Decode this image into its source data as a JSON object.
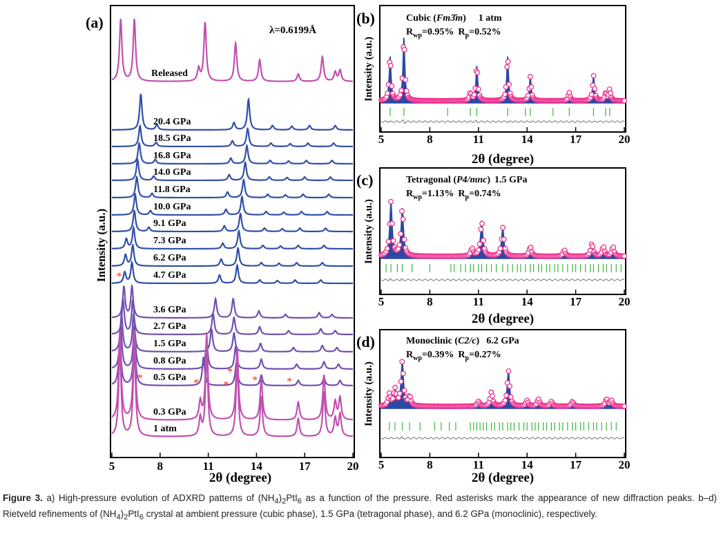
{
  "colors": {
    "magenta_trace": "#c050b0",
    "purple_trace": "#6f4fb0",
    "blue_trace": "#2f4ea8",
    "obs_marker": "#f0308f",
    "calc_fill": "#2b4aa3",
    "bragg_ticks": "#3cb43c",
    "difference": "#808080",
    "asterisk": "#ff2a00"
  },
  "chart_data": [
    {
      "panel": "(a)",
      "type": "line",
      "wavelength_label": "λ=0.6199Å",
      "xlabel": "2θ (degree)",
      "ylabel": "Intensity (a.u.)",
      "xlim": [
        5,
        20
      ],
      "xticks": [
        5,
        8,
        11,
        14,
        17,
        20
      ],
      "series": [
        {
          "name": "Released",
          "color": "magenta",
          "peaks": [
            [
              5.55,
              1.0
            ],
            [
              6.4,
              1.0
            ],
            [
              10.4,
              0.2
            ],
            [
              10.8,
              0.95
            ],
            [
              12.7,
              0.62
            ],
            [
              14.2,
              0.35
            ],
            [
              16.6,
              0.12
            ],
            [
              18.1,
              0.4
            ],
            [
              18.9,
              0.15
            ],
            [
              19.2,
              0.18
            ]
          ]
        },
        {
          "name": "20.4 GPa",
          "color": "blue",
          "peaks": [
            [
              6.8,
              1.0
            ],
            [
              7.8,
              0.15
            ],
            [
              12.6,
              0.2
            ],
            [
              13.5,
              0.85
            ],
            [
              15.0,
              0.12
            ],
            [
              16.2,
              0.1
            ],
            [
              17.3,
              0.12
            ],
            [
              18.9,
              0.12
            ]
          ]
        },
        {
          "name": "18.5 GPa",
          "color": "blue",
          "peaks": [
            [
              6.75,
              0.75
            ],
            [
              7.75,
              0.15
            ],
            [
              12.5,
              0.2
            ],
            [
              13.45,
              0.65
            ],
            [
              14.9,
              0.12
            ],
            [
              16.1,
              0.1
            ],
            [
              17.2,
              0.12
            ],
            [
              18.8,
              0.12
            ]
          ]
        },
        {
          "name": "16.8 GPa",
          "color": "blue",
          "peaks": [
            [
              6.7,
              0.75
            ],
            [
              7.7,
              0.15
            ],
            [
              12.4,
              0.2
            ],
            [
              13.4,
              0.65
            ],
            [
              14.85,
              0.12
            ],
            [
              16.0,
              0.1
            ],
            [
              17.1,
              0.12
            ],
            [
              18.7,
              0.12
            ]
          ]
        },
        {
          "name": "14.0 GPa",
          "color": "blue",
          "peaks": [
            [
              6.6,
              0.75
            ],
            [
              7.6,
              0.15
            ],
            [
              12.3,
              0.2
            ],
            [
              13.3,
              0.65
            ],
            [
              14.8,
              0.12
            ],
            [
              15.9,
              0.1
            ],
            [
              17.0,
              0.12
            ],
            [
              18.6,
              0.12
            ]
          ]
        },
        {
          "name": "11.8 GPa",
          "color": "blue",
          "peaks": [
            [
              6.55,
              0.75
            ],
            [
              7.5,
              0.15
            ],
            [
              12.2,
              0.2
            ],
            [
              13.2,
              0.65
            ],
            [
              14.7,
              0.12
            ],
            [
              15.8,
              0.1
            ],
            [
              16.9,
              0.12
            ],
            [
              18.5,
              0.12
            ]
          ]
        },
        {
          "name": "10.0 GPa",
          "color": "blue",
          "peaks": [
            [
              6.45,
              0.75
            ],
            [
              7.4,
              0.15
            ],
            [
              12.1,
              0.2
            ],
            [
              13.1,
              0.65
            ],
            [
              14.6,
              0.12
            ],
            [
              15.7,
              0.1
            ],
            [
              16.8,
              0.12
            ],
            [
              18.4,
              0.12
            ]
          ]
        },
        {
          "name": "9.1 GPa",
          "color": "blue",
          "peaks": [
            [
              6.4,
              0.75
            ],
            [
              7.3,
              0.15
            ],
            [
              12.0,
              0.2
            ],
            [
              13.0,
              0.65
            ],
            [
              14.5,
              0.12
            ],
            [
              15.6,
              0.1
            ],
            [
              16.7,
              0.12
            ],
            [
              18.3,
              0.12
            ]
          ]
        },
        {
          "name": "7.3 GPa",
          "color": "blue",
          "peaks": [
            [
              5.9,
              0.35
            ],
            [
              6.35,
              0.75
            ],
            [
              11.9,
              0.2
            ],
            [
              12.9,
              0.65
            ],
            [
              14.4,
              0.12
            ],
            [
              15.5,
              0.1
            ],
            [
              16.6,
              0.12
            ],
            [
              18.2,
              0.12
            ]
          ]
        },
        {
          "name": "6.2 GPa",
          "color": "blue",
          "peaks": [
            [
              5.85,
              0.4
            ],
            [
              6.3,
              0.75
            ],
            [
              11.8,
              0.25
            ],
            [
              12.85,
              0.65
            ],
            [
              14.3,
              0.12
            ],
            [
              15.4,
              0.1
            ],
            [
              16.5,
              0.12
            ],
            [
              18.1,
              0.12
            ]
          ]
        },
        {
          "name": "4.7 GPa",
          "color": "blue",
          "peaks": [
            [
              5.8,
              0.4
            ],
            [
              6.25,
              0.75
            ],
            [
              11.7,
              0.3
            ],
            [
              12.8,
              0.65
            ],
            [
              14.2,
              0.12
            ],
            [
              15.3,
              0.1
            ],
            [
              16.4,
              0.12
            ],
            [
              18.0,
              0.12
            ]
          ]
        },
        {
          "name": "3.6 GPa",
          "color": "purple",
          "peaks": [
            [
              5.75,
              0.9
            ],
            [
              6.25,
              0.9
            ],
            [
              11.45,
              0.55
            ],
            [
              12.55,
              0.55
            ],
            [
              14.15,
              0.2
            ],
            [
              15.8,
              0.1
            ],
            [
              17.9,
              0.15
            ],
            [
              18.7,
              0.1
            ]
          ]
        },
        {
          "name": "2.7 GPa",
          "color": "purple",
          "peaks": [
            [
              5.7,
              0.9
            ],
            [
              6.3,
              0.9
            ],
            [
              11.3,
              0.55
            ],
            [
              12.6,
              0.45
            ],
            [
              14.2,
              0.2
            ],
            [
              16.0,
              0.1
            ],
            [
              18.0,
              0.15
            ],
            [
              18.9,
              0.1
            ]
          ]
        },
        {
          "name": "1.5 GPa",
          "color": "purple",
          "peaks": [
            [
              5.6,
              0.9
            ],
            [
              6.35,
              0.9
            ],
            [
              11.2,
              0.55
            ],
            [
              12.6,
              0.45
            ],
            [
              14.25,
              0.2
            ],
            [
              16.3,
              0.1
            ],
            [
              18.1,
              0.15
            ],
            [
              19.0,
              0.1
            ]
          ]
        },
        {
          "name": "0.8 GPa",
          "color": "purple",
          "peaks": [
            [
              5.55,
              0.9
            ],
            [
              6.4,
              0.9
            ],
            [
              10.9,
              0.55
            ],
            [
              12.7,
              0.45
            ],
            [
              14.3,
              0.2
            ],
            [
              16.5,
              0.1
            ],
            [
              18.2,
              0.15
            ],
            [
              19.1,
              0.1
            ]
          ]
        },
        {
          "name": "0.5 GPa",
          "color": "purple",
          "peaks": [
            [
              5.5,
              0.9
            ],
            [
              6.4,
              0.9
            ],
            [
              10.7,
              0.55
            ],
            [
              12.75,
              0.45
            ],
            [
              14.3,
              0.2
            ],
            [
              16.6,
              0.1
            ],
            [
              18.2,
              0.15
            ],
            [
              19.2,
              0.1
            ]
          ]
        },
        {
          "name": "0.3 GPa",
          "color": "magenta",
          "peaks": [
            [
              5.5,
              1.0
            ],
            [
              6.4,
              1.0
            ],
            [
              10.5,
              0.2
            ],
            [
              10.9,
              0.95
            ],
            [
              12.8,
              0.8
            ],
            [
              14.3,
              0.45
            ],
            [
              16.6,
              0.2
            ],
            [
              18.2,
              0.5
            ],
            [
              18.9,
              0.2
            ],
            [
              19.2,
              0.25
            ]
          ]
        },
        {
          "name": "1 atm",
          "color": "magenta",
          "peaks": [
            [
              5.5,
              1.0
            ],
            [
              6.4,
              1.0
            ],
            [
              10.5,
              0.2
            ],
            [
              10.9,
              0.95
            ],
            [
              12.8,
              0.8
            ],
            [
              14.3,
              0.45
            ],
            [
              16.6,
              0.2
            ],
            [
              18.2,
              0.5
            ],
            [
              18.9,
              0.2
            ],
            [
              19.2,
              0.25
            ]
          ]
        }
      ],
      "new_peak_asterisks_2theta": [
        5.45,
        6.75,
        10.25,
        12.1,
        12.35,
        13.9,
        16.05
      ]
    },
    {
      "panel": "(b)",
      "type": "line",
      "phase": "Cubic",
      "space_group": "Fm3̄m",
      "pressure": "1 atm",
      "Rwp": "0.95%",
      "Rp": "0.52%",
      "xlabel": "2θ (degree)",
      "ylabel": "Intensity (a.u.)",
      "xlim": [
        5,
        20
      ],
      "xticks": [
        5,
        8,
        11,
        14,
        17,
        20
      ],
      "peaks": [
        [
          5.55,
          0.7
        ],
        [
          6.4,
          1.0
        ],
        [
          10.5,
          0.12
        ],
        [
          10.9,
          0.55
        ],
        [
          12.8,
          0.7
        ],
        [
          14.2,
          0.38
        ],
        [
          16.6,
          0.13
        ],
        [
          18.1,
          0.4
        ],
        [
          18.85,
          0.12
        ],
        [
          19.1,
          0.18
        ]
      ],
      "bragg_positions": [
        5.55,
        6.4,
        9.1,
        10.5,
        10.9,
        12.8,
        13.9,
        14.2,
        15.6,
        16.6,
        18.1,
        18.85,
        19.1
      ]
    },
    {
      "panel": "(c)",
      "type": "line",
      "phase": "Tetragonal",
      "space_group": "P4/mnc",
      "pressure": "1.5 GPa",
      "Rwp": "1.13%",
      "Rp": "0.74%",
      "xlabel": "2θ (degree)",
      "ylabel": "Intensity (a.u.)",
      "xlim": [
        5,
        20
      ],
      "xticks": [
        5,
        8,
        11,
        14,
        17,
        20
      ],
      "peaks": [
        [
          5.6,
          0.85
        ],
        [
          6.3,
          0.75
        ],
        [
          10.6,
          0.12
        ],
        [
          11.2,
          0.55
        ],
        [
          12.5,
          0.45
        ],
        [
          14.2,
          0.15
        ],
        [
          16.3,
          0.1
        ],
        [
          18.0,
          0.2
        ],
        [
          18.7,
          0.15
        ],
        [
          19.3,
          0.15
        ]
      ],
      "bragg_positions": [
        5.3,
        5.6,
        6.0,
        6.3,
        6.9,
        8.0,
        9.3,
        9.5,
        9.9,
        10.2,
        10.5,
        10.7,
        11.0,
        11.2,
        11.5,
        11.8,
        12.1,
        12.5,
        12.8,
        13.1,
        13.4,
        13.6,
        13.9,
        14.2,
        14.4,
        14.7,
        14.9,
        15.2,
        15.4,
        15.7,
        15.9,
        16.2,
        16.5,
        16.8,
        17.0,
        17.3,
        17.6,
        17.9,
        18.1,
        18.4,
        18.7,
        18.9,
        19.2,
        19.5,
        19.8
      ]
    },
    {
      "panel": "(d)",
      "type": "line",
      "phase": "Monoclinic",
      "space_group": "C2/c",
      "pressure": "6.2 GPa",
      "Rwp": "0.39%",
      "Rp": "0.27%",
      "xlabel": "2θ (degree)",
      "ylabel": "Intensity (a.u.)",
      "xlim": [
        5,
        20
      ],
      "xticks": [
        5,
        8,
        11,
        14,
        17,
        20
      ],
      "peaks": [
        [
          5.5,
          0.25
        ],
        [
          5.85,
          0.35
        ],
        [
          6.3,
          0.95
        ],
        [
          6.75,
          0.2
        ],
        [
          11.0,
          0.1
        ],
        [
          11.8,
          0.3
        ],
        [
          12.85,
          0.75
        ],
        [
          14.0,
          0.12
        ],
        [
          14.7,
          0.15
        ],
        [
          15.5,
          0.1
        ],
        [
          16.8,
          0.1
        ],
        [
          18.9,
          0.15
        ],
        [
          19.2,
          0.12
        ]
      ],
      "bragg_positions": [
        5.5,
        5.85,
        6.3,
        6.75,
        7.4,
        8.3,
        8.7,
        9.2,
        9.6,
        10.5,
        10.7,
        10.9,
        11.1,
        11.3,
        11.5,
        11.8,
        12.0,
        12.3,
        12.5,
        12.8,
        13.0,
        13.2,
        13.5,
        13.8,
        14.0,
        14.3,
        14.5,
        14.7,
        15.0,
        15.2,
        15.5,
        15.7,
        16.0,
        16.2,
        16.5,
        16.8,
        17.0,
        17.3,
        17.5,
        17.8,
        18.1,
        18.3,
        18.6,
        18.9,
        19.2,
        19.5
      ]
    }
  ],
  "caption": {
    "figure_label": "Figure 3.",
    "text_a_prefix": "a) High-pressure evolution of ADXRD patterns of (NH",
    "text_a_mid": ")",
    "text_a_suffix": "PtI",
    "text_a_rest": " as a function of the pressure. Red asterisks mark the appearance of new diffraction peaks. b–d) Rietveld refinements of (NH",
    "text_b_rest": " crystal at ambient pressure (cubic phase), 1.5 GPa (tetragonal phase), and 6.2 GPa (monoclinic), respectively.",
    "sub_4": "4",
    "sub_2": "2",
    "sub_6": "6"
  }
}
